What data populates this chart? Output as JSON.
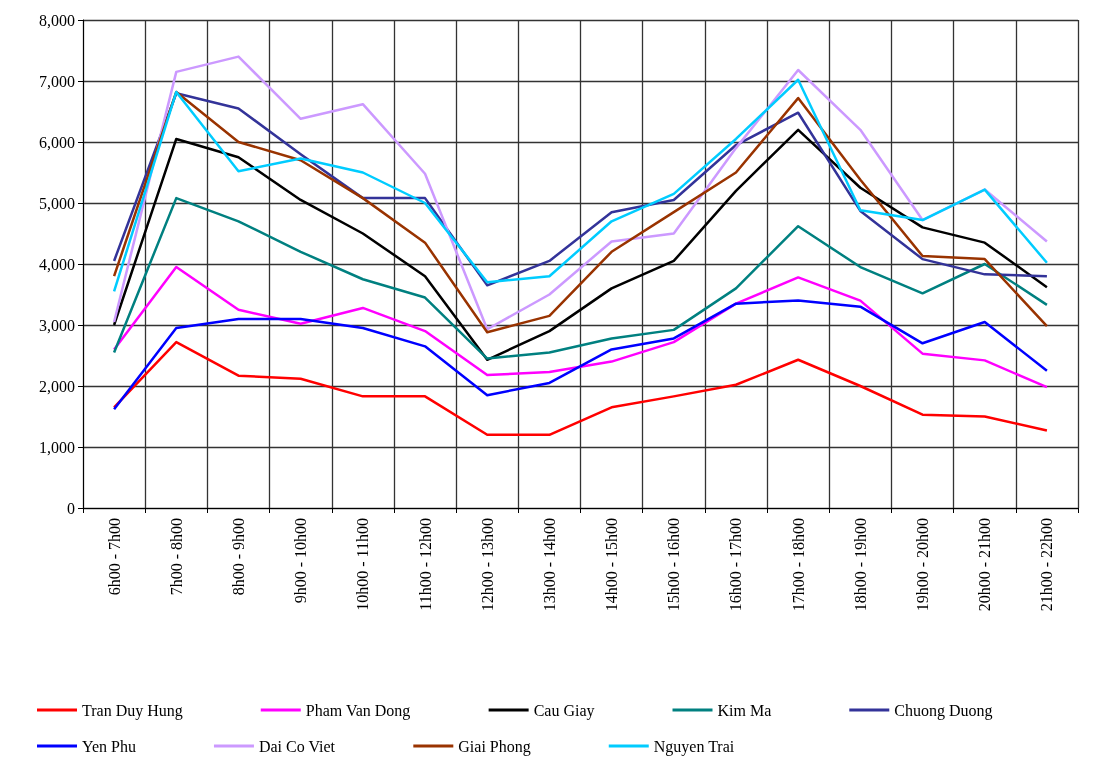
{
  "chart_data": {
    "type": "line",
    "categories": [
      "6h00 - 7h00",
      "7h00 - 8h00",
      "8h00 - 9h00",
      "9h00 - 10h00",
      "10h00 - 11h00",
      "11h00 - 12h00",
      "12h00 - 13h00",
      "13h00 - 14h00",
      "14h00 - 15h00",
      "15h00 - 16h00",
      "16h00 - 17h00",
      "17h00 - 18h00",
      "18h00 - 19h00",
      "19h00 - 20h00",
      "20h00 - 21h00",
      "21h00 - 22h00"
    ],
    "series": [
      {
        "name": "Tran Duy Hung",
        "color": "#ff0000",
        "values": [
          1650,
          2720,
          2170,
          2120,
          1830,
          1830,
          1200,
          1200,
          1650,
          1830,
          2020,
          2430,
          2000,
          1530,
          1500,
          1270
        ]
      },
      {
        "name": "Pham Van Dong",
        "color": "#ff00ff",
        "values": [
          2600,
          3950,
          3250,
          3020,
          3280,
          2900,
          2180,
          2230,
          2400,
          2720,
          3350,
          3780,
          3400,
          2530,
          2420,
          1980
        ]
      },
      {
        "name": "Cau Giay",
        "color": "#000000",
        "values": [
          3000,
          6050,
          5750,
          5050,
          4500,
          3800,
          2430,
          2900,
          3600,
          4050,
          5200,
          6200,
          5250,
          4600,
          4350,
          3620
        ]
      },
      {
        "name": "Kim Ma",
        "color": "#008080",
        "values": [
          2550,
          5080,
          4700,
          4200,
          3750,
          3450,
          2450,
          2550,
          2780,
          2920,
          3600,
          4620,
          3950,
          3520,
          4000,
          3330
        ]
      },
      {
        "name": "Chuong Duong",
        "color": "#333399",
        "values": [
          4050,
          6800,
          6550,
          5800,
          5080,
          5080,
          3650,
          4050,
          4850,
          5050,
          5950,
          6480,
          4870,
          4080,
          3830,
          3800
        ]
      },
      {
        "name": "Yen Phu",
        "color": "#0000ff",
        "values": [
          1620,
          2950,
          3100,
          3100,
          2950,
          2650,
          1850,
          2050,
          2600,
          2780,
          3350,
          3400,
          3300,
          2700,
          3050,
          2250
        ]
      },
      {
        "name": "Dai Co Viet",
        "color": "#cc99ff",
        "values": [
          3050,
          7150,
          7400,
          6380,
          6620,
          5480,
          2930,
          3500,
          4370,
          4500,
          5900,
          7180,
          6200,
          4720,
          5220,
          4370
        ]
      },
      {
        "name": "Giai Phong",
        "color": "#993300",
        "values": [
          3800,
          6820,
          6000,
          5700,
          5080,
          4350,
          2880,
          3150,
          4200,
          4850,
          5500,
          6720,
          5380,
          4130,
          4080,
          2980
        ]
      },
      {
        "name": "Nguyen Trai",
        "color": "#00ccff",
        "values": [
          3550,
          6820,
          5520,
          5730,
          5500,
          5000,
          3700,
          3800,
          4700,
          5150,
          6050,
          7020,
          4880,
          4720,
          5220,
          4020
        ]
      }
    ],
    "ylim": [
      0,
      8000
    ],
    "yticks": [
      0,
      {
        "value": 1000,
        "label": "1,000"
      },
      {
        "value": 2000,
        "label": "2,000"
      },
      {
        "value": 3000,
        "label": "3,000"
      },
      {
        "value": 4000,
        "label": "4,000"
      },
      {
        "value": 5000,
        "label": "5,000"
      },
      {
        "value": 6000,
        "label": "6,000"
      },
      {
        "value": 7000,
        "label": "7,000"
      },
      {
        "value": 8000,
        "label": "8,000"
      }
    ],
    "grid": true,
    "legend": "bottom",
    "marker": "none",
    "line_style": "solid"
  }
}
